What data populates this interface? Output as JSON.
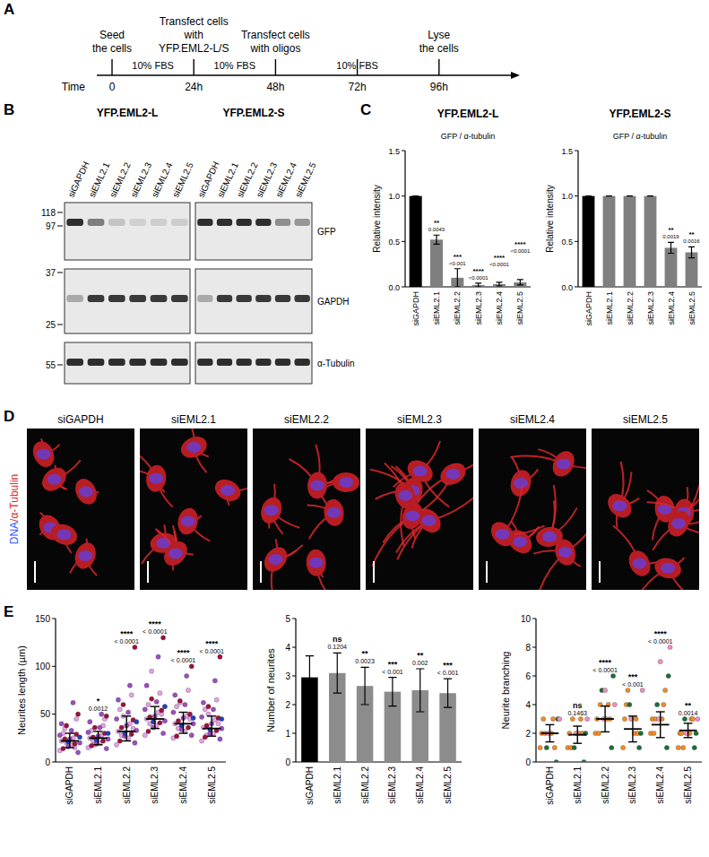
{
  "panel_labels": [
    "A",
    "B",
    "C",
    "D",
    "E"
  ],
  "timeline": {
    "axis_label": "Time",
    "ticks": [
      0,
      {
        "value": 24,
        "label": "24h"
      },
      {
        "value": 48,
        "label": "48h"
      },
      {
        "value": 72,
        "label": "72h"
      },
      {
        "value": 96,
        "label": "96h"
      }
    ],
    "events": [
      {
        "at": 0,
        "lines": [
          "Seed",
          "the cells"
        ]
      },
      {
        "at": 24,
        "lines": [
          "Transfect cells",
          "with",
          "YFP.EML2-L/S"
        ]
      },
      {
        "at": 48,
        "lines": [
          "Transfect cells",
          "with oligos"
        ]
      },
      {
        "at": 96,
        "lines": [
          "Lyse",
          "the cells"
        ]
      }
    ],
    "intervals": [
      {
        "from": 0,
        "to": 24,
        "label": "10% FBS"
      },
      {
        "from": 24,
        "to": 48,
        "label": "10% FBS"
      },
      {
        "from": 48,
        "to": 96,
        "label": "10% FBS"
      }
    ]
  },
  "blot": {
    "columns": [
      {
        "title": "YFP.EML2-L",
        "lanes": [
          "siGAPDH",
          "siEML2.1",
          "siEML2.2",
          "siEML2.3",
          "siEML2.4",
          "siEML2.5"
        ]
      },
      {
        "title": "YFP.EML2-S",
        "lanes": [
          "siGAPDH",
          "siEML2.1",
          "siEML2.2",
          "siEML2.3",
          "siEML2.4",
          "siEML2.5"
        ]
      }
    ],
    "rows": [
      {
        "label": "GFP",
        "markers": [
          118,
          97
        ]
      },
      {
        "label": "GAPDH",
        "markers": [
          37,
          25
        ]
      },
      {
        "label": "α-Tubulin",
        "markers": [
          55
        ]
      }
    ]
  },
  "micrographs": {
    "stain_label": [
      "DNA",
      "/α-Tubulin"
    ],
    "conditions": [
      "siGAPDH",
      "siEML2.1",
      "siEML2.2",
      "siEML2.3",
      "siEML2.4",
      "siEML2.5"
    ]
  },
  "chart_data": [
    {
      "type": "bar",
      "title": "YFP.EML2-L",
      "subtitle": "GFP / α-tubulin",
      "ylabel": "Relative intensity",
      "categories": [
        "siGAPDH",
        "siEML2.1",
        "siEML2.2",
        "siEML2.3",
        "siEML2.4",
        "siEML2.5"
      ],
      "values": [
        1,
        0.52,
        0.1,
        0.02,
        0.03,
        0.05
      ],
      "errors": [
        0,
        0.05,
        0.1,
        0.02,
        0.02,
        0.03
      ],
      "colors": [
        "#000000",
        "#7f7f7f",
        "#7f7f7f",
        "#7f7f7f",
        "#7f7f7f",
        "#7f7f7f"
      ],
      "ylim": [
        0,
        1.5
      ],
      "yticks": [
        {
          "value": 0,
          "label": "0.0"
        },
        0.5,
        {
          "value": 1,
          "label": "1.0"
        },
        1.5
      ],
      "grid": false,
      "annotations": [
        {
          "category": "siEML2.1",
          "stars": "**",
          "p": "0.0043"
        },
        {
          "category": "siEML2.2",
          "stars": "***",
          "p": "<0.001"
        },
        {
          "category": "siEML2.3",
          "stars": "****",
          "p": "<0.0001"
        },
        {
          "category": "siEML2.4",
          "stars": "****",
          "p": "<0.0001"
        },
        {
          "category": "siEML2.5",
          "stars": "****",
          "p": "<0.0001"
        }
      ]
    },
    {
      "type": "bar",
      "title": "YFP.EML2-S",
      "subtitle": "GFP / α-tubulin",
      "ylabel": "Relative intensity",
      "categories": [
        "siGAPDH",
        "siEML2.1",
        "siEML2.2",
        "siEML2.3",
        "siEML2.4",
        "siEML2.5"
      ],
      "values": [
        1,
        1,
        1,
        1,
        0.43,
        0.38
      ],
      "errors": [
        0,
        0,
        0,
        0,
        0.06,
        0.06
      ],
      "colors": [
        "#000000",
        "#7f7f7f",
        "#7f7f7f",
        "#7f7f7f",
        "#7f7f7f",
        "#7f7f7f"
      ],
      "ylim": [
        0,
        1.5
      ],
      "yticks": [
        {
          "value": 0,
          "label": "0.0"
        },
        0.5,
        {
          "value": 1,
          "label": "1.0"
        },
        1.5
      ],
      "grid": false,
      "annotations": [
        {
          "category": "siEML2.4",
          "stars": "**",
          "p": "0.0019"
        },
        {
          "category": "siEML2.5",
          "stars": "**",
          "p": "0.0016"
        }
      ]
    },
    {
      "type": "dot",
      "ylabel": "Neurites length (µm)",
      "categories": [
        "siGAPDH",
        "siEML2.1",
        "siEML2.2",
        "siEML2.3",
        "siEML2.4",
        "siEML2.5"
      ],
      "series": [
        {
          "color": "#e7a3e7",
          "values": [
            [
              12,
              18,
              22,
              25,
              30,
              15,
              35,
              45,
              20
            ],
            [
              15,
              20,
              25,
              28,
              33,
              38,
              22,
              45,
              18
            ],
            [
              18,
              25,
              32,
              40,
              55,
              70,
              28,
              35,
              48
            ],
            [
              28,
              38,
              45,
              52,
              60,
              72,
              40,
              50,
              95
            ],
            [
              25,
              32,
              40,
              48,
              58,
              75,
              35,
              45,
              62
            ],
            [
              22,
              30,
              36,
              44,
              55,
              65,
              28,
              40,
              50
            ]
          ]
        },
        {
          "color": "#9b4fc0",
          "values": [
            [
              10,
              16,
              20,
              24,
              28,
              33,
              40,
              62
            ],
            [
              14,
              19,
              24,
              27,
              31,
              36,
              42,
              50
            ],
            [
              20,
              27,
              33,
              38,
              45,
              52,
              65,
              80
            ],
            [
              30,
              36,
              43,
              48,
              55,
              63,
              80,
              110
            ],
            [
              28,
              34,
              40,
              46,
              52,
              60,
              70,
              90
            ],
            [
              24,
              30,
              35,
              40,
              47,
              55,
              62,
              85
            ]
          ]
        },
        {
          "color": "#a0103a",
          "values": [
            [
              14,
              19,
              24,
              29,
              38,
              50
            ],
            [
              17,
              22,
              26,
              30,
              36,
              48
            ],
            [
              22,
              29,
              36,
              44,
              60,
              120
            ],
            [
              32,
              41,
              47,
              54,
              66,
              130
            ],
            [
              27,
              36,
              43,
              50,
              64,
              100
            ],
            [
              26,
              33,
              38,
              46,
              58,
              110
            ]
          ]
        },
        {
          "color": "#2040c0",
          "values": [
            [
              21,
              26
            ],
            [
              23,
              30
            ],
            [
              30,
              42
            ],
            [
              42,
              58
            ],
            [
              38,
              46
            ],
            [
              34,
              45
            ]
          ]
        }
      ],
      "values": [
        22,
        25,
        32,
        45,
        40,
        35
      ],
      "lower": [
        15,
        18,
        22,
        35,
        30,
        27
      ],
      "upper": [
        30,
        32,
        48,
        58,
        52,
        48
      ],
      "ylim": [
        0,
        150
      ],
      "yticks": [
        0,
        50,
        100,
        150
      ],
      "grid": false,
      "annotations": [
        {
          "category": "siEML2.1",
          "stars": "*",
          "p": "0.0012"
        },
        {
          "category": "siEML2.2",
          "stars": "****",
          "p": "< 0.0001"
        },
        {
          "category": "siEML2.3",
          "stars": "****",
          "p": "< 0.0001"
        },
        {
          "category": "siEML2.4",
          "stars": "****",
          "p": "< 0.0001"
        },
        {
          "category": "siEML2.5",
          "stars": "****",
          "p": "< 0.0001"
        }
      ]
    },
    {
      "type": "bar",
      "ylabel": "Number of neurites",
      "categories": [
        "siGAPDH",
        "siEML2.1",
        "siEML2.2",
        "siEML2.3",
        "siEML2.4",
        "siEML2.5"
      ],
      "values": [
        2.95,
        3.1,
        2.65,
        2.45,
        2.5,
        2.4
      ],
      "errors": [
        0.75,
        0.7,
        0.65,
        0.5,
        0.75,
        0.5
      ],
      "colors": [
        "#000000",
        "#8c8c8c",
        "#8c8c8c",
        "#8c8c8c",
        "#8c8c8c",
        "#8c8c8c"
      ],
      "ylim": [
        0,
        5
      ],
      "yticks": [
        0,
        1,
        2,
        3,
        4,
        5
      ],
      "grid": false,
      "annotations": [
        {
          "category": "siEML2.1",
          "stars": "ns",
          "p": "0.1204"
        },
        {
          "category": "siEML2.2",
          "stars": "**",
          "p": "0.0023"
        },
        {
          "category": "siEML2.3",
          "stars": "***",
          "p": "< 0.001"
        },
        {
          "category": "siEML2.4",
          "stars": "**",
          "p": "0.002"
        },
        {
          "category": "siEML2.5",
          "stars": "***",
          "p": "< 0.001"
        }
      ]
    },
    {
      "type": "dot",
      "ylabel": "Neurite branching",
      "categories": [
        "siGAPDH",
        "siEML2.1",
        "siEML2.2",
        "siEML2.3",
        "siEML2.4",
        "siEML2.5"
      ],
      "series": [
        {
          "color": "#f28c28",
          "values": [
            [
              1,
              2,
              2,
              3,
              3,
              1,
              2
            ],
            [
              1,
              2,
              2,
              3,
              1,
              2,
              3
            ],
            [
              2,
              3,
              3,
              4,
              2,
              3,
              4
            ],
            [
              1,
              2,
              3,
              3,
              4,
              2,
              5
            ],
            [
              2,
              3,
              3,
              4,
              2,
              5,
              3
            ],
            [
              1,
              2,
              2,
              3,
              2,
              3,
              1
            ]
          ]
        },
        {
          "color": "#1b6e3c",
          "values": [
            [
              0,
              1,
              3
            ],
            [
              0,
              1,
              2
            ],
            [
              1,
              5,
              6
            ],
            [
              1,
              4,
              2
            ],
            [
              1,
              4,
              6
            ],
            [
              1,
              3,
              2
            ]
          ]
        },
        {
          "color": "#f08fc0",
          "values": [
            [
              2,
              3
            ],
            [
              2,
              3
            ],
            [
              3,
              4,
              5
            ],
            [
              3,
              5
            ],
            [
              3,
              8,
              7
            ],
            [
              2,
              3
            ]
          ]
        }
      ],
      "values": [
        2,
        1.9,
        3,
        2.3,
        2.6,
        2.2
      ],
      "errors": [
        0.6,
        0.6,
        0.9,
        0.9,
        0.9,
        0.5
      ],
      "ylim": [
        0,
        10
      ],
      "yticks": [
        0,
        2,
        4,
        6,
        8,
        10
      ],
      "grid": false,
      "annotations": [
        {
          "category": "siEML2.1",
          "stars": "ns",
          "p": "0.1463"
        },
        {
          "category": "siEML2.2",
          "stars": "****",
          "p": "< 0.0001"
        },
        {
          "category": "siEML2.3",
          "stars": "***",
          "p": "< 0.001"
        },
        {
          "category": "siEML2.4",
          "stars": "****",
          "p": "< 0.0001"
        },
        {
          "category": "siEML2.5",
          "stars": "**",
          "p": "0.0014"
        }
      ]
    }
  ]
}
